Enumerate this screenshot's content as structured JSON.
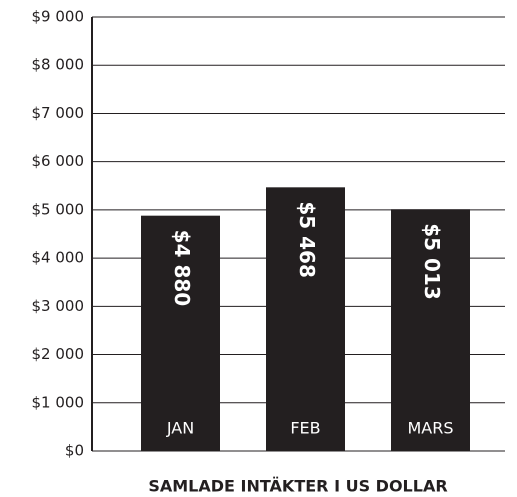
{
  "chart_data": {
    "type": "bar",
    "title": "SAMLADE INTÄKTER I US DOLLAR",
    "categories": [
      "JAN",
      "FEB",
      "MARS"
    ],
    "values": [
      4880,
      5468,
      5013
    ],
    "value_labels": [
      "$4 880",
      "$5 468",
      "$5 013"
    ],
    "color": "#231f20",
    "ylim": [
      0,
      9000
    ],
    "yticks": [
      {
        "value": 0,
        "label": "$0"
      },
      {
        "value": 1000,
        "label": "$1 000"
      },
      {
        "value": 2000,
        "label": "$2 000"
      },
      {
        "value": 3000,
        "label": "$3 000"
      },
      {
        "value": 4000,
        "label": "$4 000"
      },
      {
        "value": 5000,
        "label": "$5 000"
      },
      {
        "value": 6000,
        "label": "$6 000"
      },
      {
        "value": 7000,
        "label": "$7 000"
      },
      {
        "value": 8000,
        "label": "$8 000"
      },
      {
        "value": 9000,
        "label": "$9 000"
      }
    ],
    "grid": true
  }
}
